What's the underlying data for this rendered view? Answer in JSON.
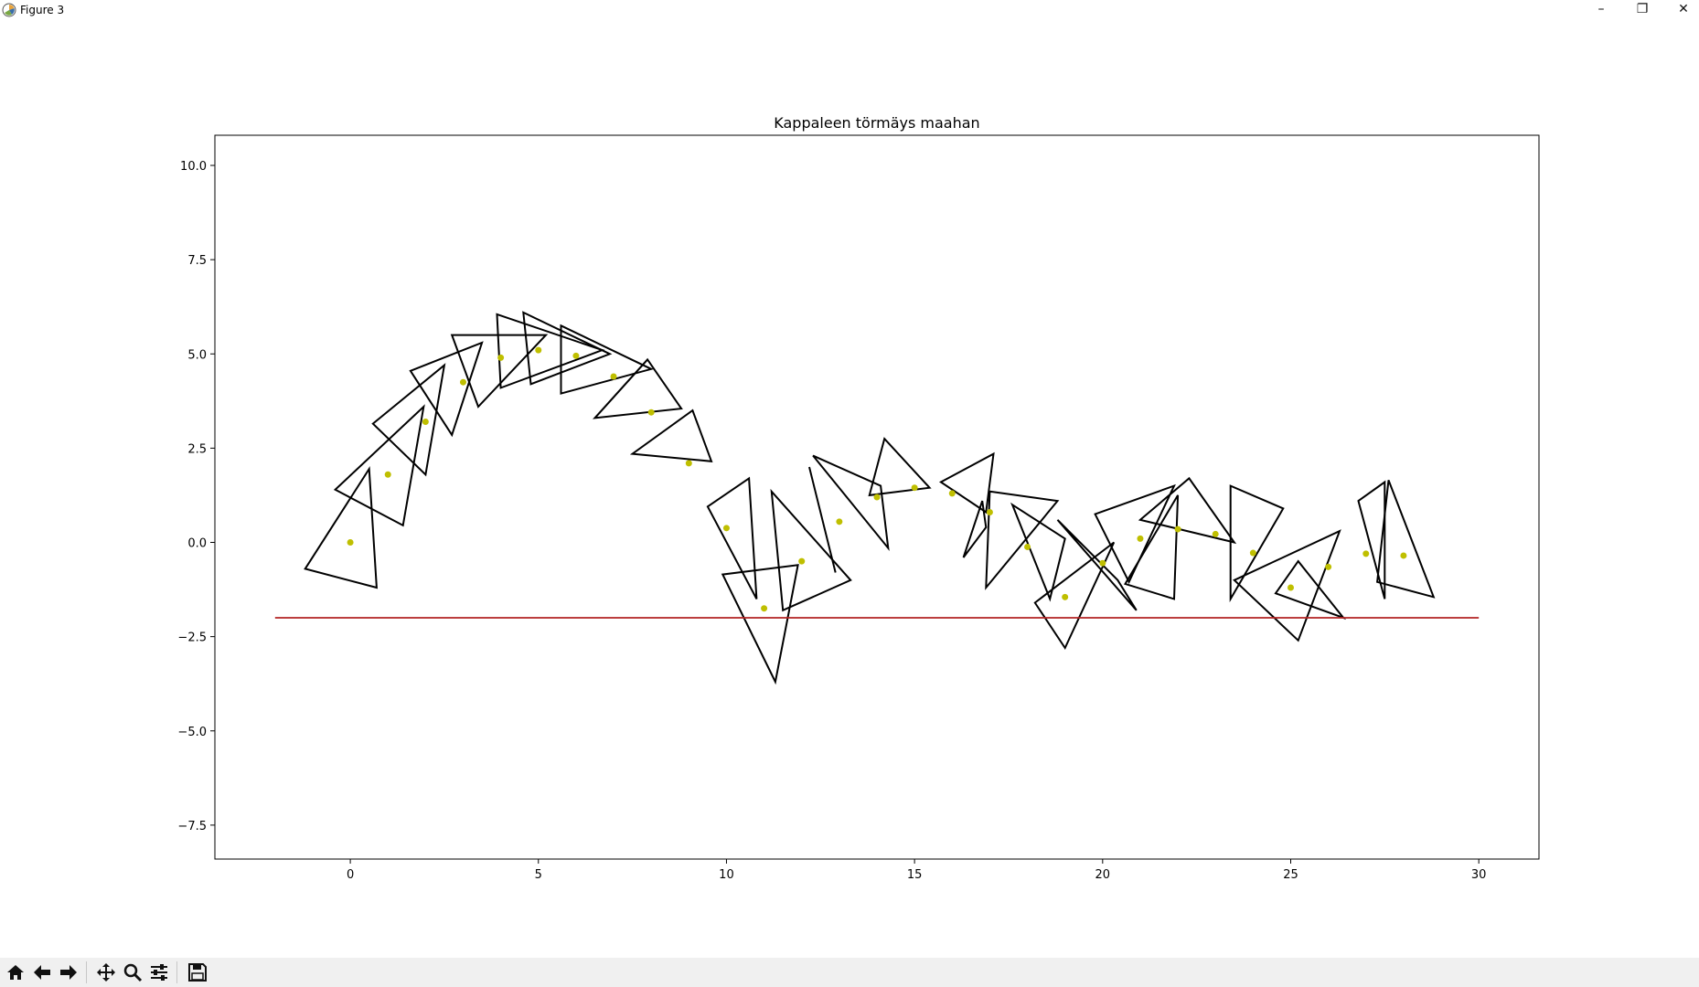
{
  "window": {
    "title": "Figure 3",
    "controls": {
      "minimize": "–",
      "maximize": "❐",
      "close": "✕"
    }
  },
  "toolbar": {
    "buttons": [
      {
        "name": "home-button",
        "icon": "home-icon"
      },
      {
        "name": "back-button",
        "icon": "arrow-left-icon"
      },
      {
        "name": "forward-button",
        "icon": "arrow-right-icon"
      },
      {
        "name": "pan-button",
        "icon": "move-icon"
      },
      {
        "name": "zoom-button",
        "icon": "magnifier-icon"
      },
      {
        "name": "configure-subplots-button",
        "icon": "sliders-icon"
      },
      {
        "name": "save-button",
        "icon": "floppy-disk-icon"
      }
    ]
  },
  "chart_data": {
    "type": "scatter",
    "title": "Kappaleen törmäys maahan",
    "xlabel": "",
    "ylabel": "",
    "xlim": [
      -3.6,
      31.6
    ],
    "ylim": [
      -8.4,
      10.8
    ],
    "xticks": [
      0,
      5,
      10,
      15,
      20,
      25,
      30
    ],
    "xtick_labels": [
      "0",
      "5",
      "10",
      "15",
      "20",
      "25",
      "30"
    ],
    "yticks": [
      10.0,
      7.5,
      5.0,
      2.5,
      0.0,
      -2.5,
      -5.0,
      -7.5
    ],
    "ytick_labels": [
      "10.0",
      "7.5",
      "5.0",
      "2.5",
      "0.0",
      "−2.5",
      "−5.0",
      "−7.5"
    ],
    "grid": false,
    "ground_line": {
      "x": [
        -2,
        30
      ],
      "y": [
        -2,
        -2
      ],
      "color": "#b22222"
    },
    "centers": {
      "color": "#bfbf00",
      "x": [
        0,
        1,
        2,
        3,
        4,
        5,
        6,
        7,
        8,
        9,
        10,
        11,
        12,
        13,
        14,
        15,
        16,
        17,
        18,
        19,
        20,
        21,
        22,
        23,
        24,
        25,
        26,
        27,
        28
      ],
      "y": [
        0.0,
        1.8,
        3.2,
        4.25,
        4.9,
        5.1,
        4.95,
        4.4,
        3.45,
        2.1,
        0.38,
        -1.75,
        -0.5,
        0.55,
        1.2,
        1.45,
        1.3,
        0.8,
        -0.12,
        -1.45,
        -0.55,
        0.1,
        0.35,
        0.22,
        -0.28,
        -1.2,
        -0.65,
        -0.3,
        -0.35
      ]
    },
    "triangles": {
      "color": "#000000",
      "vertices": [
        [
          [
            0.5,
            1.95
          ],
          [
            0.7,
            -1.2
          ],
          [
            -1.2,
            -0.7
          ]
        ],
        [
          [
            -0.4,
            1.4
          ],
          [
            1.4,
            0.45
          ],
          [
            1.95,
            3.6
          ]
        ],
        [
          [
            0.6,
            3.15
          ],
          [
            2.5,
            4.7
          ],
          [
            2.0,
            1.8
          ]
        ],
        [
          [
            1.6,
            4.55
          ],
          [
            3.5,
            5.3
          ],
          [
            2.7,
            2.85
          ]
        ],
        [
          [
            2.7,
            5.5
          ],
          [
            5.2,
            5.5
          ],
          [
            3.4,
            3.6
          ]
        ],
        [
          [
            3.9,
            6.05
          ],
          [
            6.7,
            5.1
          ],
          [
            4.0,
            4.1
          ]
        ],
        [
          [
            4.6,
            6.1
          ],
          [
            6.9,
            5.0
          ],
          [
            4.8,
            4.2
          ]
        ],
        [
          [
            5.6,
            5.75
          ],
          [
            8.0,
            4.6
          ],
          [
            5.6,
            3.95
          ]
        ],
        [
          [
            7.9,
            4.85
          ],
          [
            8.8,
            3.55
          ],
          [
            6.5,
            3.3
          ]
        ],
        [
          [
            9.1,
            3.5
          ],
          [
            9.6,
            2.15
          ],
          [
            7.5,
            2.35
          ]
        ],
        [
          [
            10.6,
            1.7
          ],
          [
            10.8,
            -1.5
          ],
          [
            9.5,
            0.95
          ]
        ],
        [
          [
            9.9,
            -0.85
          ],
          [
            11.3,
            -3.7
          ],
          [
            11.9,
            -0.6
          ]
        ],
        [
          [
            11.2,
            1.35
          ],
          [
            11.5,
            -1.8
          ],
          [
            13.3,
            -1.0
          ]
        ],
        [
          [
            12.2,
            2.0
          ],
          [
            12.9,
            -0.8
          ],
          [
            12.5,
            0.8
          ]
        ],
        [
          [
            12.3,
            2.3
          ],
          [
            14.1,
            1.5
          ],
          [
            14.3,
            -0.15
          ]
        ],
        [
          [
            14.2,
            2.75
          ],
          [
            15.4,
            1.45
          ],
          [
            13.8,
            1.25
          ]
        ],
        [
          [
            15.7,
            1.6
          ],
          [
            17.1,
            2.35
          ],
          [
            16.9,
            0.8
          ]
        ],
        [
          [
            16.8,
            1.1
          ],
          [
            16.9,
            0.4
          ],
          [
            16.3,
            -0.4
          ]
        ],
        [
          [
            17.0,
            1.35
          ],
          [
            18.8,
            1.1
          ],
          [
            16.9,
            -1.2
          ]
        ],
        [
          [
            17.6,
            1.0
          ],
          [
            19.0,
            0.1
          ],
          [
            18.6,
            -1.5
          ]
        ],
        [
          [
            18.2,
            -1.6
          ],
          [
            20.3,
            0.0
          ],
          [
            19.0,
            -2.8
          ]
        ],
        [
          [
            18.8,
            0.6
          ],
          [
            20.4,
            -1.0
          ],
          [
            20.9,
            -1.8
          ]
        ],
        [
          [
            19.8,
            0.75
          ],
          [
            21.9,
            1.5
          ],
          [
            20.7,
            -1.05
          ]
        ],
        [
          [
            20.6,
            -1.1
          ],
          [
            21.9,
            -1.5
          ],
          [
            22.0,
            1.25
          ]
        ],
        [
          [
            21.0,
            0.6
          ],
          [
            22.3,
            1.7
          ],
          [
            23.5,
            0.0
          ]
        ],
        [
          [
            23.4,
            1.5
          ],
          [
            23.4,
            -1.5
          ],
          [
            24.8,
            0.9
          ]
        ],
        [
          [
            23.5,
            -1.0
          ],
          [
            25.2,
            -2.6
          ],
          [
            26.3,
            0.3
          ]
        ],
        [
          [
            24.6,
            -1.35
          ],
          [
            25.2,
            -0.5
          ],
          [
            26.4,
            -2.0
          ]
        ],
        [
          [
            26.8,
            1.1
          ],
          [
            27.5,
            1.6
          ],
          [
            27.5,
            -1.5
          ]
        ],
        [
          [
            27.6,
            1.65
          ],
          [
            28.8,
            -1.45
          ],
          [
            27.3,
            -1.05
          ]
        ]
      ]
    }
  }
}
